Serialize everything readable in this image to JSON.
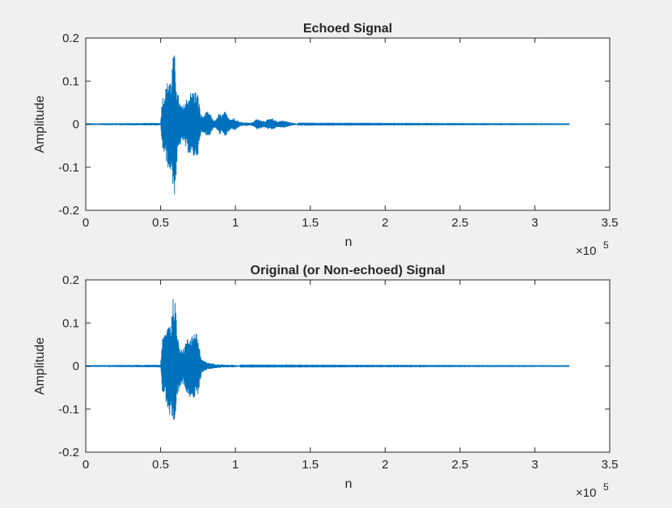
{
  "figure": {
    "background": "#f0f0f0"
  },
  "chart_data": [
    {
      "type": "line",
      "title": "Echoed Signal",
      "xlabel": "n",
      "ylabel": "Amplitude",
      "xlim": [
        0,
        350000
      ],
      "ylim": [
        -0.2,
        0.2
      ],
      "xticks": [
        0,
        50000,
        100000,
        150000,
        200000,
        250000,
        300000,
        350000
      ],
      "xtick_labels": [
        "0",
        "0.5",
        "1",
        "1.5",
        "2",
        "2.5",
        "3",
        "3.5"
      ],
      "x_exponent_label": "×10",
      "x_exponent_power": "5",
      "yticks": [
        0.2,
        0.1,
        0,
        -0.1,
        -0.2
      ],
      "ytick_labels": [
        "0.2",
        "0.1",
        "0",
        "-0.1",
        "-0.2"
      ],
      "grid": false,
      "color": "#0072bd",
      "series": [
        {
          "signal_end": 323000,
          "envelope": [
            [
              0,
              0.002
            ],
            [
              50000,
              0.003
            ],
            [
              51000,
              0.06
            ],
            [
              54000,
              0.09
            ],
            [
              56000,
              0.12
            ],
            [
              57000,
              0.1
            ],
            [
              58000,
              0.15
            ],
            [
              59000,
              0.17
            ],
            [
              60000,
              0.14
            ],
            [
              61000,
              0.08
            ],
            [
              63000,
              0.05
            ],
            [
              65000,
              0.04
            ],
            [
              67000,
              0.06
            ],
            [
              70000,
              0.075
            ],
            [
              73000,
              0.08
            ],
            [
              75000,
              0.07
            ],
            [
              77000,
              0.02
            ],
            [
              79000,
              0.02
            ],
            [
              81000,
              0.03
            ],
            [
              83000,
              0.025
            ],
            [
              85000,
              0.01
            ],
            [
              87000,
              0.01
            ],
            [
              89000,
              0.025
            ],
            [
              91000,
              0.022
            ],
            [
              93000,
              0.03
            ],
            [
              95000,
              0.02
            ],
            [
              97000,
              0.012
            ],
            [
              99000,
              0.015
            ],
            [
              101000,
              0.01
            ],
            [
              103000,
              0.005
            ],
            [
              108000,
              0.004
            ],
            [
              110000,
              0.003
            ],
            [
              112000,
              0.006
            ],
            [
              114000,
              0.012
            ],
            [
              117000,
              0.01
            ],
            [
              120000,
              0.008
            ],
            [
              122000,
              0.012
            ],
            [
              125000,
              0.013
            ],
            [
              127000,
              0.008
            ],
            [
              129000,
              0.007
            ],
            [
              131000,
              0.009
            ],
            [
              133000,
              0.008
            ],
            [
              135000,
              0.006
            ],
            [
              138000,
              0.003
            ],
            [
              142000,
              0.001
            ],
            [
              323000,
              0.0005
            ]
          ]
        }
      ]
    },
    {
      "type": "line",
      "title": "Original (or Non-echoed) Signal",
      "xlabel": "n",
      "ylabel": "Amplitude",
      "xlim": [
        0,
        350000
      ],
      "ylim": [
        -0.2,
        0.2
      ],
      "xticks": [
        0,
        50000,
        100000,
        150000,
        200000,
        250000,
        300000,
        350000
      ],
      "xtick_labels": [
        "0",
        "0.5",
        "1",
        "1.5",
        "2",
        "2.5",
        "3",
        "3.5"
      ],
      "x_exponent_label": "×10",
      "x_exponent_power": "5",
      "yticks": [
        0.2,
        0.1,
        0,
        -0.1,
        -0.2
      ],
      "ytick_labels": [
        "0.2",
        "0.1",
        "0",
        "-0.1",
        "-0.2"
      ],
      "grid": false,
      "color": "#0072bd",
      "series": [
        {
          "signal_end": 323000,
          "envelope": [
            [
              0,
              0.002
            ],
            [
              50000,
              0.003
            ],
            [
              51000,
              0.06
            ],
            [
              54000,
              0.09
            ],
            [
              56000,
              0.12
            ],
            [
              57000,
              0.1
            ],
            [
              58000,
              0.15
            ],
            [
              59000,
              0.17
            ],
            [
              60000,
              0.14
            ],
            [
              61000,
              0.08
            ],
            [
              63000,
              0.05
            ],
            [
              65000,
              0.04
            ],
            [
              67000,
              0.06
            ],
            [
              70000,
              0.075
            ],
            [
              73000,
              0.08
            ],
            [
              75000,
              0.07
            ],
            [
              77000,
              0.02
            ],
            [
              79000,
              0.012
            ],
            [
              82000,
              0.008
            ],
            [
              86000,
              0.005
            ],
            [
              90000,
              0.004
            ],
            [
              94000,
              0.003
            ],
            [
              98000,
              0.003
            ],
            [
              101000,
              0.002
            ],
            [
              103000,
              0.001
            ],
            [
              323000,
              0.0005
            ]
          ]
        }
      ]
    }
  ]
}
